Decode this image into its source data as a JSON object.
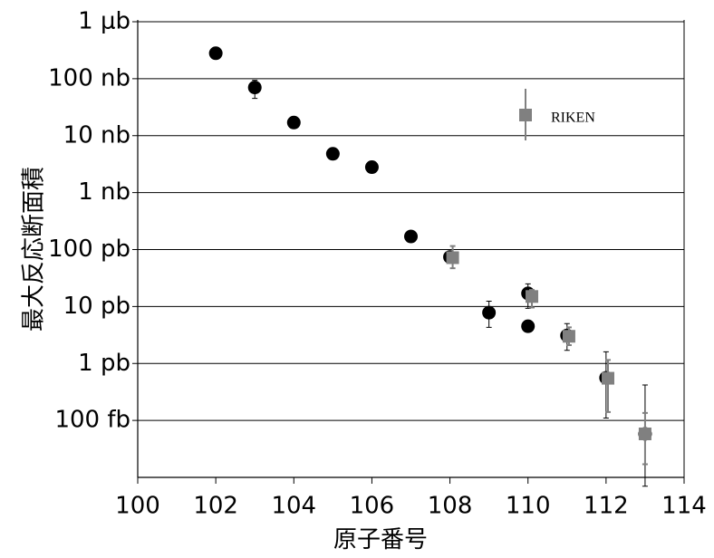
{
  "chart_data": {
    "type": "scatter",
    "log_y": true,
    "grid": true,
    "x_label": "原子番号",
    "y_label": "最大反応断面積",
    "xlim": [
      100,
      114
    ],
    "xticks": [
      100,
      102,
      104,
      106,
      108,
      110,
      112,
      114
    ],
    "ylim": [
      0.01,
      1000000
    ],
    "yticks": [
      {
        "value": 0.1,
        "label": "100 fb"
      },
      {
        "value": 1,
        "label": "1 pb"
      },
      {
        "value": 10,
        "label": "10 pb"
      },
      {
        "value": 100,
        "label": "100 pb"
      },
      {
        "value": 1000,
        "label": "1 nb"
      },
      {
        "value": 10000,
        "label": "10 nb"
      },
      {
        "value": 100000,
        "label": "100 nb"
      },
      {
        "value": 1000000,
        "label": "1 μb"
      }
    ],
    "series": [
      {
        "color": "#000000",
        "marker": "circle",
        "x": [
          102,
          103,
          104,
          105,
          106,
          107,
          108,
          109,
          110,
          110,
          111,
          112,
          113
        ],
        "values": [
          280000,
          70000,
          17000,
          4800,
          2800,
          170,
          74,
          7.8,
          17,
          4.5,
          3.1,
          0.56,
          0.058
        ],
        "err_low": [
          null,
          45000,
          null,
          null,
          null,
          null,
          null,
          4.3,
          9.3,
          null,
          1.7,
          0.11,
          0.007
        ],
        "err_high": [
          null,
          94000,
          null,
          null,
          null,
          null,
          null,
          12.4,
          25,
          null,
          5.0,
          1.6,
          0.42
        ]
      },
      {
        "name": "RIKEN",
        "color": "#808080",
        "marker": "square",
        "x": [
          108.07,
          110.1,
          111.05,
          112.05,
          113
        ],
        "values": [
          72,
          15,
          3.0,
          0.55,
          0.058
        ],
        "err_low": [
          47,
          9.6,
          2.1,
          0.14,
          0.017
        ],
        "err_high": [
          115,
          19.5,
          4.3,
          1.15,
          0.135
        ]
      }
    ]
  }
}
